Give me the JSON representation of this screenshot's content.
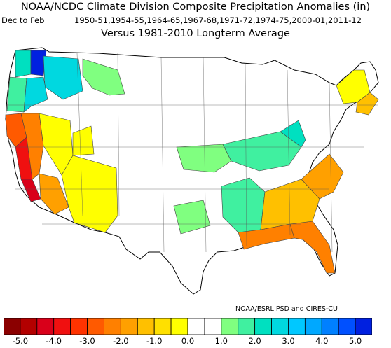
{
  "title": "NOAA/NCDC Climate Division Composite Precipitation Anomalies (in)",
  "season": "Dec to Feb",
  "years": "1950-51,1954-55,1964-65,1967-68,1971-72,1974-75,2000-01,2011-12",
  "comparison": "Versus 1981-2010 Longterm Average",
  "credit": "NOAA/ESRL PSD and CIRES-CU",
  "legend": {
    "tick_labels": [
      "-5.0",
      "-4.0",
      "-3.0",
      "-2.0",
      "-1.0",
      "0.0",
      "1.0",
      "2.0",
      "3.0",
      "4.0",
      "5.0"
    ],
    "bins": [
      {
        "color": "#8b0000"
      },
      {
        "color": "#b30000"
      },
      {
        "color": "#d9001a"
      },
      {
        "color": "#f01010"
      },
      {
        "color": "#ff3300"
      },
      {
        "color": "#ff5a00"
      },
      {
        "color": "#ff8000"
      },
      {
        "color": "#ffa000"
      },
      {
        "color": "#ffc000"
      },
      {
        "color": "#ffe000"
      },
      {
        "color": "#ffff00"
      },
      {
        "color": "#ffffff"
      },
      {
        "color": "#ffffff"
      },
      {
        "color": "#80ff80"
      },
      {
        "color": "#40f0a0"
      },
      {
        "color": "#00e0c0"
      },
      {
        "color": "#00d8e0"
      },
      {
        "color": "#00c8ff"
      },
      {
        "color": "#00a8ff"
      },
      {
        "color": "#0080ff"
      },
      {
        "color": "#0050ff"
      },
      {
        "color": "#0020e0"
      }
    ]
  },
  "map_regions": [
    {
      "name": "region-wa-coast",
      "color": "#00e0c0"
    },
    {
      "name": "region-wa-cascades",
      "color": "#0020e0"
    },
    {
      "name": "region-wa-east",
      "color": "#00d8e0"
    },
    {
      "name": "region-id-north",
      "color": "#80ff80"
    },
    {
      "name": "region-or-coast",
      "color": "#40f0a0"
    },
    {
      "name": "region-or-interior",
      "color": "#00d8e0"
    },
    {
      "name": "region-ca-north-coast",
      "color": "#ff5a00"
    },
    {
      "name": "region-ca-central-coast",
      "color": "#f01010"
    },
    {
      "name": "region-ca-south-coast",
      "color": "#d9001a"
    },
    {
      "name": "region-ca-sierra",
      "color": "#ff8000"
    },
    {
      "name": "region-ca-southeast",
      "color": "#ffa000"
    },
    {
      "name": "region-nv",
      "color": "#ffff00"
    },
    {
      "name": "region-az",
      "color": "#ffff00"
    },
    {
      "name": "region-ut-west",
      "color": "#ffff00"
    },
    {
      "name": "region-ohio-valley",
      "color": "#40f0a0"
    },
    {
      "name": "region-midwest-band",
      "color": "#80ff80"
    },
    {
      "name": "region-mississippi-valley",
      "color": "#40f0a0"
    },
    {
      "name": "region-arkansas",
      "color": "#80ff80"
    },
    {
      "name": "region-gulf-coast",
      "color": "#ff8000"
    },
    {
      "name": "region-florida",
      "color": "#ff8000"
    },
    {
      "name": "region-georgia-sc",
      "color": "#ffc000"
    },
    {
      "name": "region-nc-va",
      "color": "#ffa000"
    },
    {
      "name": "region-new-england",
      "color": "#ffff00"
    },
    {
      "name": "region-new-england-coast",
      "color": "#ffc000"
    },
    {
      "name": "region-mid-atlantic-greens",
      "color": "#00e0c0"
    }
  ]
}
